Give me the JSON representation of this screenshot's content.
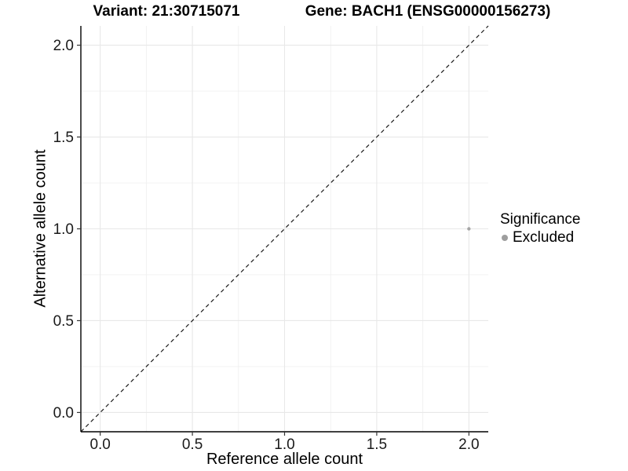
{
  "page": {
    "background": "#ffffff"
  },
  "chart_data": {
    "type": "scatter",
    "title_left": "Variant: 21:30715071",
    "title_right": "Gene: BACH1 (ENSG00000156273)",
    "xlabel": "Reference allele count",
    "ylabel": "Alternative allele count",
    "xlim": [
      -0.105,
      2.105
    ],
    "ylim": [
      -0.105,
      2.105
    ],
    "x_ticks": [
      0.0,
      0.5,
      1.0,
      1.5,
      2.0
    ],
    "y_ticks": [
      0.0,
      0.5,
      1.0,
      1.5,
      2.0
    ],
    "x_tick_labels": [
      "0.0",
      "0.5",
      "1.0",
      "1.5",
      "2.0"
    ],
    "y_tick_labels": [
      "0.0",
      "0.5",
      "1.0",
      "1.5",
      "2.0"
    ],
    "minor_gridlines": [
      0.25,
      0.75,
      1.25,
      1.75
    ],
    "grid": true,
    "series": [
      {
        "name": "Excluded",
        "points": [
          {
            "x": 2.0,
            "y": 1.0
          }
        ],
        "color": "#a6a6a6",
        "point_radius": 2.2
      }
    ],
    "reference_line": {
      "type": "identity",
      "style": "dashed",
      "color": "#1a1a1a"
    },
    "legend": {
      "title": "Significance",
      "position": "right",
      "entries": [
        {
          "label": "Excluded",
          "color": "#9e9e9e",
          "marker": "circle"
        }
      ]
    },
    "colors": {
      "grid_major": "#e8e8e8",
      "grid_minor": "#f0f0f0",
      "axis_line": "#000000",
      "tick_mark": "#333333",
      "tick_text": "#1a1a1a"
    }
  }
}
